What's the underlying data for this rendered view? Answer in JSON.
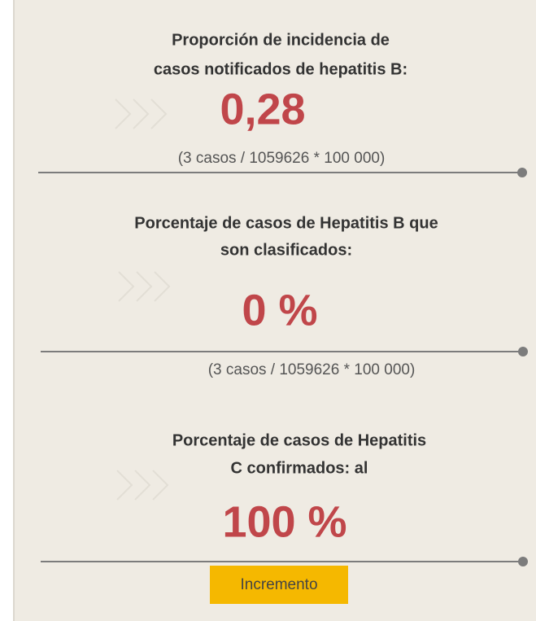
{
  "sections": [
    {
      "title_lines": [
        "Proporción de incidencia de",
        "casos notificados de hepatitis B:"
      ],
      "value": "0,28",
      "formula": "(3 casos / 1059626 * 100 000)"
    },
    {
      "title_lines": [
        "Porcentaje de casos de Hepatitis B que",
        "son clasificados:"
      ],
      "value": "0 %",
      "formula": "(3 casos / 1059626 * 100 000)"
    },
    {
      "title_lines": [
        "Porcentaje de casos de Hepatitis",
        "C confirmados: al"
      ],
      "value": "100 %",
      "badge": "Incremento"
    }
  ]
}
